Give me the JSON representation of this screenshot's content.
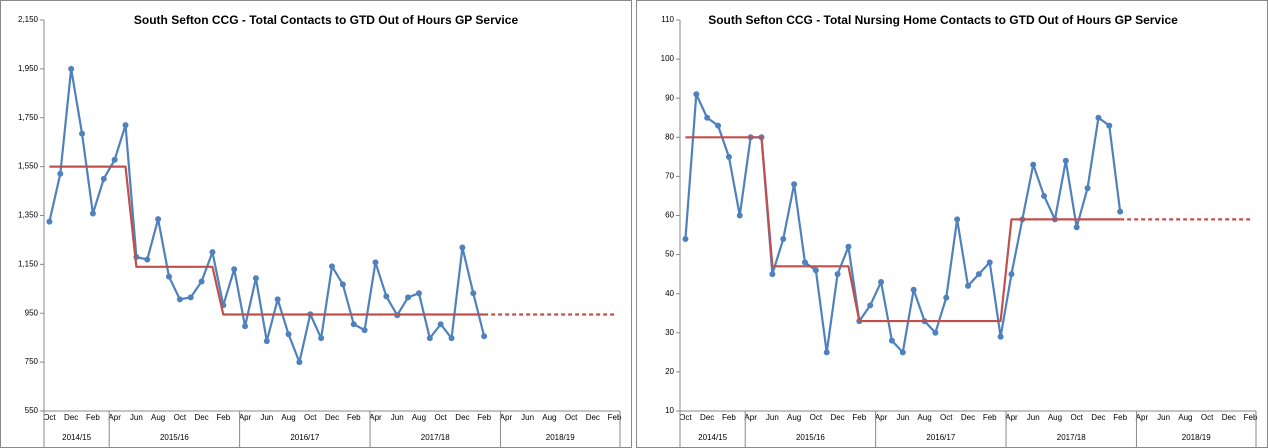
{
  "chart_data": [
    {
      "type": "line",
      "title": "South Sefton CCG -  Total Contacts to GTD Out of Hours GP Service",
      "categories": [
        "Oct",
        null,
        "Dec",
        null,
        "Feb",
        null,
        "Apr",
        null,
        "Jun",
        null,
        "Aug",
        null,
        "Oct",
        null,
        "Dec",
        null,
        "Feb",
        null,
        "Apr",
        null,
        "Jun",
        null,
        "Aug",
        null,
        "Oct",
        null,
        "Dec",
        null,
        "Feb",
        null,
        "Apr",
        null,
        "Jun",
        null,
        "Aug",
        null,
        "Oct",
        null,
        "Dec",
        null,
        "Feb",
        null,
        "Apr",
        null,
        "Jun",
        null,
        "Aug",
        null,
        "Oct",
        null,
        "Dec",
        null,
        "Feb"
      ],
      "groups": [
        "2014/15",
        "2015/16",
        "2016/17",
        "2017/18",
        "2018/19"
      ],
      "group_sizes": [
        6,
        12,
        12,
        12,
        11
      ],
      "ylim": [
        550,
        2150
      ],
      "yticks": [
        {
          "value": 550,
          "label": "550"
        },
        {
          "value": 750,
          "label": "750"
        },
        {
          "value": 950,
          "label": "950"
        },
        {
          "value": 1150,
          "label": "1,150"
        },
        {
          "value": 1350,
          "label": "1,350"
        },
        {
          "value": 1550,
          "label": "1,550"
        },
        {
          "value": 1750,
          "label": "1,750"
        },
        {
          "value": 1950,
          "label": "1,950"
        },
        {
          "value": 2150,
          "label": "2,150"
        }
      ],
      "series": [
        {
          "color": "#4f81bd",
          "markers": true,
          "dashed": false,
          "values": [
            1325,
            1521,
            1950,
            1685,
            1358,
            1500,
            1578,
            1720,
            1180,
            1170,
            1335,
            1100,
            1007,
            1015,
            1080,
            1200,
            983,
            1130,
            897,
            1093,
            836,
            1007,
            864,
            750,
            946,
            848,
            1142,
            1068,
            905,
            881,
            1158,
            1019,
            942,
            1015,
            1032,
            848,
            905,
            848,
            1219,
            1032,
            856,
            null,
            null,
            null,
            null,
            null,
            null,
            null,
            null,
            null,
            null,
            null,
            null
          ]
        },
        {
          "color": "#c0504d",
          "markers": false,
          "dashed": false,
          "values": [
            1550,
            1550,
            1550,
            1550,
            1550,
            1550,
            1550,
            1550,
            1140,
            1140,
            1140,
            1140,
            1140,
            1140,
            1140,
            1140,
            945,
            945,
            945,
            945,
            945,
            945,
            945,
            945,
            945,
            945,
            945,
            945,
            945,
            945,
            945,
            945,
            945,
            945,
            945,
            945,
            945,
            945,
            945,
            945,
            945,
            null,
            null,
            null,
            null,
            null,
            null,
            null,
            null,
            null,
            null,
            null,
            null
          ]
        },
        {
          "color": "#c0504d",
          "markers": false,
          "dashed": true,
          "values": [
            null,
            null,
            null,
            null,
            null,
            null,
            null,
            null,
            null,
            null,
            null,
            null,
            null,
            null,
            null,
            null,
            null,
            null,
            null,
            null,
            null,
            null,
            null,
            null,
            null,
            null,
            null,
            null,
            null,
            null,
            null,
            null,
            null,
            null,
            null,
            null,
            null,
            null,
            null,
            null,
            945,
            945,
            945,
            945,
            945,
            945,
            945,
            945,
            945,
            945,
            945,
            945,
            945
          ]
        }
      ]
    },
    {
      "type": "line",
      "title": "South Sefton CCG -  Total Nursing Home Contacts to GTD Out of Hours GP Service",
      "categories": [
        "Oct",
        null,
        "Dec",
        null,
        "Feb",
        null,
        "Apr",
        null,
        "Jun",
        null,
        "Aug",
        null,
        "Oct",
        null,
        "Dec",
        null,
        "Feb",
        null,
        "Apr",
        null,
        "Jun",
        null,
        "Aug",
        null,
        "Oct",
        null,
        "Dec",
        null,
        "Feb",
        null,
        "Apr",
        null,
        "Jun",
        null,
        "Aug",
        null,
        "Oct",
        null,
        "Dec",
        null,
        "Feb",
        null,
        "Apr",
        null,
        "Jun",
        null,
        "Aug",
        null,
        "Oct",
        null,
        "Dec",
        null,
        "Feb"
      ],
      "groups": [
        "2014/15",
        "2015/16",
        "2016/17",
        "2017/18",
        "2018/19"
      ],
      "group_sizes": [
        6,
        12,
        12,
        12,
        11
      ],
      "ylim": [
        10,
        110
      ],
      "yticks": [
        10,
        20,
        30,
        40,
        50,
        60,
        70,
        80,
        90,
        100,
        110
      ],
      "series": [
        {
          "color": "#4f81bd",
          "markers": true,
          "dashed": false,
          "values": [
            54,
            91,
            85,
            83,
            75,
            60,
            80,
            80,
            45,
            54,
            68,
            48,
            46,
            25,
            45,
            52,
            33,
            37,
            43,
            28,
            25,
            41,
            33,
            30,
            39,
            59,
            42,
            45,
            48,
            29,
            45,
            59,
            73,
            65,
            59,
            74,
            57,
            67,
            85,
            83,
            61,
            null,
            null,
            null,
            null,
            null,
            null,
            null,
            null,
            null,
            null,
            null,
            null
          ]
        },
        {
          "color": "#c0504d",
          "markers": false,
          "dashed": false,
          "values": [
            80,
            80,
            80,
            80,
            80,
            80,
            80,
            80,
            47,
            47,
            47,
            47,
            47,
            47,
            47,
            47,
            33,
            33,
            33,
            33,
            33,
            33,
            33,
            33,
            33,
            33,
            33,
            33,
            33,
            33,
            59,
            59,
            59,
            59,
            59,
            59,
            59,
            59,
            59,
            59,
            59,
            null,
            null,
            null,
            null,
            null,
            null,
            null,
            null,
            null,
            null,
            null,
            null
          ]
        },
        {
          "color": "#c0504d",
          "markers": false,
          "dashed": true,
          "values": [
            null,
            null,
            null,
            null,
            null,
            null,
            null,
            null,
            null,
            null,
            null,
            null,
            null,
            null,
            null,
            null,
            null,
            null,
            null,
            null,
            null,
            null,
            null,
            null,
            null,
            null,
            null,
            null,
            null,
            null,
            null,
            null,
            null,
            null,
            null,
            null,
            null,
            null,
            null,
            null,
            59,
            59,
            59,
            59,
            59,
            59,
            59,
            59,
            59,
            59,
            59,
            59,
            59
          ]
        }
      ]
    }
  ]
}
